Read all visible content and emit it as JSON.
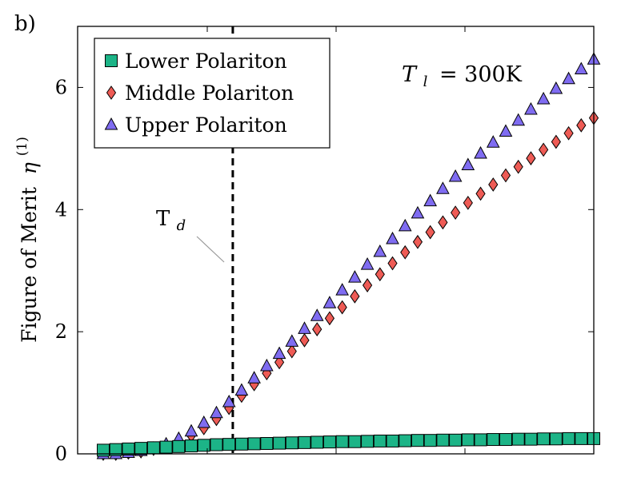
{
  "panel_label": "b)",
  "chart_data": {
    "type": "scatter",
    "ylabel": "Figure of Merit",
    "ylabel_symbol": "η",
    "ylabel_superscript": "(1)",
    "yticks": [
      0,
      2,
      4,
      6
    ],
    "ylim": [
      0,
      7
    ],
    "grid": false,
    "legend_position": "top-left",
    "annotation": {
      "lhs": "T",
      "lhs_sub": "l",
      "rhs": "= 300K"
    },
    "threshold_marker": {
      "label": "T",
      "label_sub": "d",
      "x_index": 10.3
    },
    "point_count": 40,
    "series": [
      {
        "name": "Lower Polariton",
        "marker": "square",
        "color": "#1cb487",
        "values": [
          0.06,
          0.07,
          0.08,
          0.09,
          0.1,
          0.11,
          0.12,
          0.13,
          0.14,
          0.15,
          0.155,
          0.16,
          0.165,
          0.17,
          0.175,
          0.18,
          0.185,
          0.19,
          0.195,
          0.2,
          0.2,
          0.205,
          0.21,
          0.21,
          0.215,
          0.22,
          0.22,
          0.225,
          0.225,
          0.23,
          0.23,
          0.235,
          0.235,
          0.24,
          0.24,
          0.245,
          0.245,
          0.25,
          0.25,
          0.25
        ]
      },
      {
        "name": "Middle Polariton",
        "marker": "diamond",
        "color": "#ee5b55",
        "values": [
          0.0,
          0.0,
          0.02,
          0.04,
          0.08,
          0.13,
          0.2,
          0.3,
          0.42,
          0.57,
          0.75,
          0.95,
          1.14,
          1.32,
          1.5,
          1.68,
          1.86,
          2.04,
          2.22,
          2.4,
          2.58,
          2.76,
          2.94,
          3.12,
          3.3,
          3.47,
          3.63,
          3.79,
          3.95,
          4.11,
          4.26,
          4.41,
          4.56,
          4.7,
          4.84,
          4.98,
          5.11,
          5.25,
          5.38,
          5.5
        ]
      },
      {
        "name": "Upper Polariton",
        "marker": "triangle",
        "color": "#7f6cf1",
        "values": [
          0.0,
          0.0,
          0.02,
          0.05,
          0.09,
          0.16,
          0.25,
          0.37,
          0.51,
          0.67,
          0.85,
          1.04,
          1.24,
          1.44,
          1.64,
          1.84,
          2.05,
          2.26,
          2.47,
          2.68,
          2.89,
          3.1,
          3.31,
          3.52,
          3.73,
          3.94,
          4.14,
          4.34,
          4.54,
          4.73,
          4.92,
          5.1,
          5.28,
          5.46,
          5.64,
          5.81,
          5.98,
          6.14,
          6.3,
          6.46
        ]
      }
    ]
  }
}
